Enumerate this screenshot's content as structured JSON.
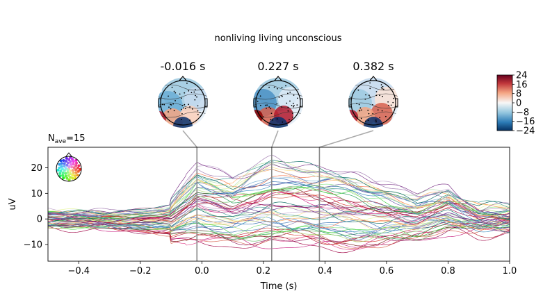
{
  "title": "nonliving living unconscious",
  "nave_label": "N",
  "nave_sub": "ave",
  "nave_value": "=15",
  "topomaps": [
    {
      "label": "-0.016 s",
      "time": -0.016
    },
    {
      "label": "0.227 s",
      "time": 0.227
    },
    {
      "label": "0.382 s",
      "time": 0.382
    }
  ],
  "colorbar": {
    "ticks": [
      24,
      16,
      8,
      0,
      -8,
      -16,
      -24
    ],
    "tick_labels": [
      "24",
      "16",
      "8",
      "0",
      "−8",
      "−16",
      "−24"
    ],
    "range": [
      -24,
      24
    ],
    "colormap": "RdBu_r"
  },
  "chart_data": {
    "type": "line",
    "xlabel": "Time (s)",
    "ylabel": "uV",
    "xlim": [
      -0.5,
      1.0
    ],
    "ylim": [
      -16.5,
      28
    ],
    "x_ticks": [
      -0.4,
      -0.2,
      0.0,
      0.2,
      0.4,
      0.6,
      0.8,
      1.0
    ],
    "x_tick_labels": [
      "−0.4",
      "−0.2",
      "0.0",
      "0.2",
      "0.4",
      "0.6",
      "0.8",
      "1.0"
    ],
    "y_ticks": [
      -10,
      0,
      10,
      20
    ],
    "y_tick_labels": [
      "−10",
      "0",
      "10",
      "20"
    ],
    "grid": false,
    "vlines": [
      -0.016,
      0.227,
      0.382
    ],
    "n_channels": 59,
    "series_envelope": {
      "x": [
        -0.5,
        -0.3,
        -0.1,
        -0.016,
        0.1,
        0.227,
        0.382,
        0.5,
        0.7,
        0.8,
        0.9,
        1.0
      ],
      "max": [
        5,
        4,
        8,
        22,
        17,
        25,
        22,
        19,
        9,
        13,
        5,
        5
      ],
      "min": [
        -5,
        -6,
        -9,
        -10,
        -11,
        -12,
        -12,
        -13,
        -8,
        -6,
        -6,
        -5
      ]
    }
  }
}
